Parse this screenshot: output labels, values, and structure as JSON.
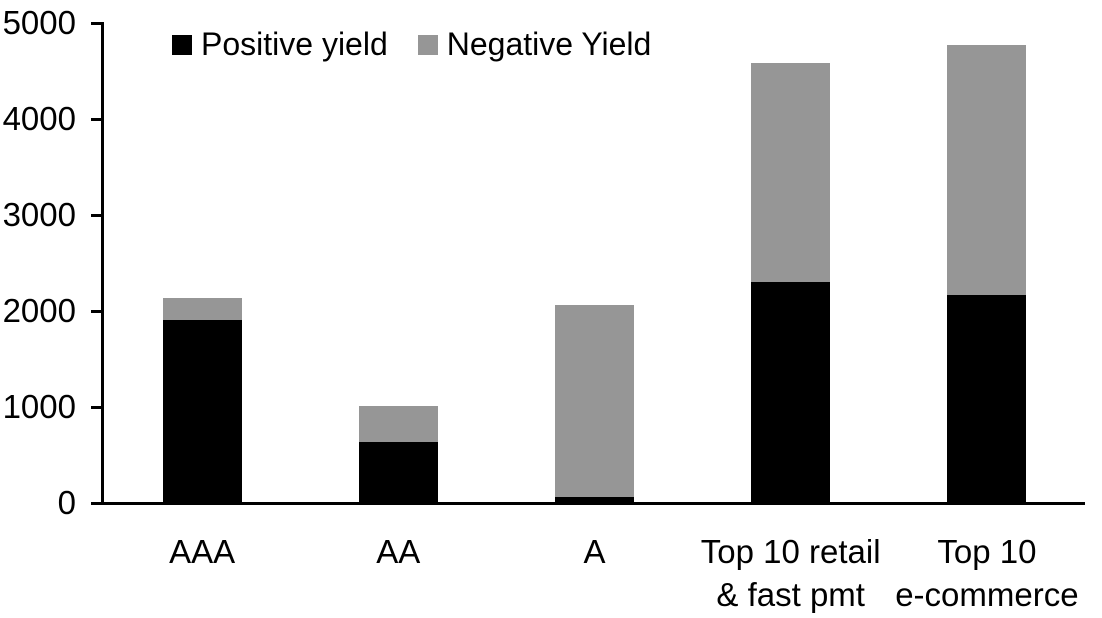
{
  "chart_data": {
    "type": "bar",
    "stacked": true,
    "title": "",
    "xlabel": "",
    "ylabel": "",
    "categories": [
      "AAA",
      "AA",
      "A",
      "Top 10 retail & fast pmt",
      "Top 10 e-commerce"
    ],
    "category_label_lines": [
      [
        "AAA"
      ],
      [
        "AA"
      ],
      [
        "A"
      ],
      [
        "Top 10 retail",
        "& fast pmt"
      ],
      [
        "Top 10",
        "e-commerce"
      ]
    ],
    "series": [
      {
        "name": "Positive yield",
        "color": "#000000",
        "values": [
          1900,
          620,
          50,
          2290,
          2160
        ]
      },
      {
        "name": "Negative Yield",
        "color": "#969696",
        "values": [
          230,
          380,
          2000,
          2280,
          2600
        ]
      }
    ],
    "stack_totals": [
      2130,
      1000,
      2050,
      4570,
      4760
    ],
    "ylim": [
      0,
      5000
    ],
    "ytick_interval": 1000,
    "ytick_labels": [
      "0",
      "1000",
      "2000",
      "3000",
      "4000",
      "5000"
    ],
    "grid": false,
    "legend_position": "top-left-inside"
  },
  "colors": {
    "axis": "#000000",
    "background": "#ffffff",
    "positive_series": "#000000",
    "negative_series": "#969696"
  }
}
